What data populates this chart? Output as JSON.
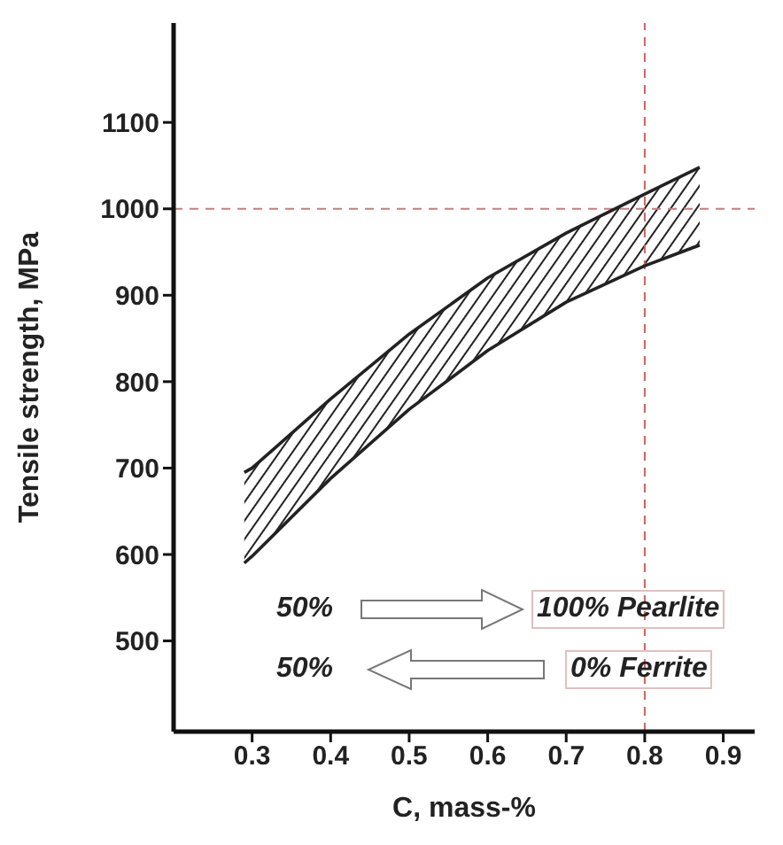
{
  "chart_data": {
    "type": "line",
    "xlabel": "C, mass-%",
    "ylabel": "Tensile strength, MPa",
    "x": [
      0.29,
      0.3,
      0.4,
      0.5,
      0.6,
      0.7,
      0.8,
      0.87
    ],
    "series": [
      {
        "color": "#222222",
        "values": [
          695,
          700,
          780,
          855,
          920,
          972,
          1017,
          1048
        ]
      },
      {
        "color": "#222222",
        "values": [
          590,
          598,
          688,
          768,
          836,
          892,
          934,
          958
        ]
      }
    ],
    "xlim": [
      0.2,
      0.94
    ],
    "xticks": [
      0.3,
      0.4,
      0.5,
      0.6,
      0.7,
      0.8,
      0.9
    ],
    "ylim": [
      395,
      1215
    ],
    "yticks": [
      500,
      600,
      700,
      800,
      900,
      1000,
      1100
    ],
    "ref_lines": [
      {
        "axis": "y",
        "value": 1000,
        "color": "#c08080",
        "line_style": "dashed"
      },
      {
        "axis": "x",
        "value": 0.8,
        "color": "#d06060",
        "line_style": "dashed"
      }
    ],
    "annotations": [
      "50%",
      "100% Pearlite",
      "50%",
      "0% Ferrite"
    ],
    "grid": false,
    "legend": false
  }
}
